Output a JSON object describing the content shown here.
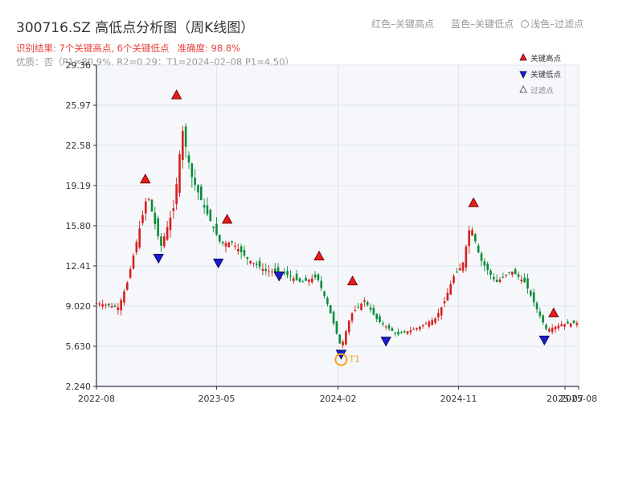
{
  "header": {
    "title": "300716.SZ 高低点分析图（周K线图）",
    "legend_red": "红色–关键高点",
    "legend_blue": "蓝色–关键低点",
    "legend_light": "浅色–过滤点",
    "result_text": "识别结果: 7个关键高点, 6个关键低点",
    "accuracy_text": "准确度: 98.8%",
    "quality_text": "优质：否（P1=80.9%, R2=0.29；T1=2024–02–08 P1=4.50）"
  },
  "legend": {
    "high": "关键高点",
    "low": "关键低点",
    "filtered": "过滤点"
  },
  "colors": {
    "up": "#d81e1e",
    "down": "#098c3a",
    "high_marker": "#e81919",
    "low_marker": "#1b1bd4",
    "t1_marker": "#f5a524",
    "plot_bg": "#f5f7fa",
    "grid": "#e0e3e8",
    "axis": "#2a3444"
  },
  "chart_data": {
    "type": "candlestick",
    "timeframe": "weekly",
    "ylim": [
      2.24,
      29.36
    ],
    "yticks": [
      2.24,
      5.63,
      9.02,
      12.41,
      15.8,
      19.19,
      22.58,
      25.97,
      29.36
    ],
    "ytick_labels": [
      "2.240",
      "5.630",
      "9.020",
      "12.41",
      "15.80",
      "19.19",
      "22.58",
      "25.97",
      "29.36"
    ],
    "xlim": [
      "2022-08-01",
      "2025-08-01"
    ],
    "xticks": [
      "2022-08",
      "2023-05",
      "2024-02",
      "2024-11",
      "2025-07",
      "2025-08"
    ],
    "close_keypoints": [
      {
        "date": "2022-08-01",
        "close": 9.3
      },
      {
        "date": "2022-09-20",
        "close": 8.9
      },
      {
        "date": "2022-10-10",
        "close": 11.0
      },
      {
        "date": "2022-11-25",
        "close": 18.5
      },
      {
        "date": "2022-12-25",
        "close": 14.0
      },
      {
        "date": "2023-01-25",
        "close": 17.5
      },
      {
        "date": "2023-02-12",
        "close": 24.0
      },
      {
        "date": "2023-03-05",
        "close": 20.0
      },
      {
        "date": "2023-04-01",
        "close": 17.5
      },
      {
        "date": "2023-05-10",
        "close": 14.3
      },
      {
        "date": "2023-06-05",
        "close": 14.4
      },
      {
        "date": "2023-07-10",
        "close": 13.0
      },
      {
        "date": "2023-08-20",
        "close": 12.0
      },
      {
        "date": "2023-10-01",
        "close": 11.8
      },
      {
        "date": "2023-11-10",
        "close": 11.0
      },
      {
        "date": "2023-12-15",
        "close": 11.5
      },
      {
        "date": "2024-01-10",
        "close": 9.0
      },
      {
        "date": "2024-02-08",
        "close": 5.5
      },
      {
        "date": "2024-03-01",
        "close": 8.3
      },
      {
        "date": "2024-04-01",
        "close": 9.5
      },
      {
        "date": "2024-05-01",
        "close": 7.8
      },
      {
        "date": "2024-06-15",
        "close": 6.6
      },
      {
        "date": "2024-08-01",
        "close": 7.2
      },
      {
        "date": "2024-09-10",
        "close": 8.0
      },
      {
        "date": "2024-10-01",
        "close": 9.5
      },
      {
        "date": "2024-10-20",
        "close": 11.5
      },
      {
        "date": "2024-11-10",
        "close": 12.5
      },
      {
        "date": "2024-11-28",
        "close": 16.0
      },
      {
        "date": "2024-12-20",
        "close": 13.0
      },
      {
        "date": "2025-01-25",
        "close": 11.0
      },
      {
        "date": "2025-03-01",
        "close": 12.0
      },
      {
        "date": "2025-04-01",
        "close": 11.0
      },
      {
        "date": "2025-05-01",
        "close": 8.5
      },
      {
        "date": "2025-05-20",
        "close": 7.0
      },
      {
        "date": "2025-06-25",
        "close": 7.5
      },
      {
        "date": "2025-08-01",
        "close": 7.6
      }
    ],
    "key_highs": [
      {
        "date": "2022-11-20",
        "price": 19.2
      },
      {
        "date": "2023-01-30",
        "price": 26.3
      },
      {
        "date": "2023-05-25",
        "price": 15.8
      },
      {
        "date": "2023-12-20",
        "price": 12.7
      },
      {
        "date": "2024-03-05",
        "price": 10.6
      },
      {
        "date": "2024-12-05",
        "price": 17.2
      },
      {
        "date": "2025-06-05",
        "price": 7.9
      }
    ],
    "key_lows": [
      {
        "date": "2022-12-20",
        "price": 13.6
      },
      {
        "date": "2023-05-05",
        "price": 13.2
      },
      {
        "date": "2023-09-20",
        "price": 12.1
      },
      {
        "date": "2024-02-08",
        "price": 5.5
      },
      {
        "date": "2024-05-20",
        "price": 6.6
      },
      {
        "date": "2025-05-15",
        "price": 6.7
      }
    ],
    "annotations": [
      {
        "label": "T1",
        "date": "2024-02-08",
        "price": 4.5
      }
    ]
  }
}
